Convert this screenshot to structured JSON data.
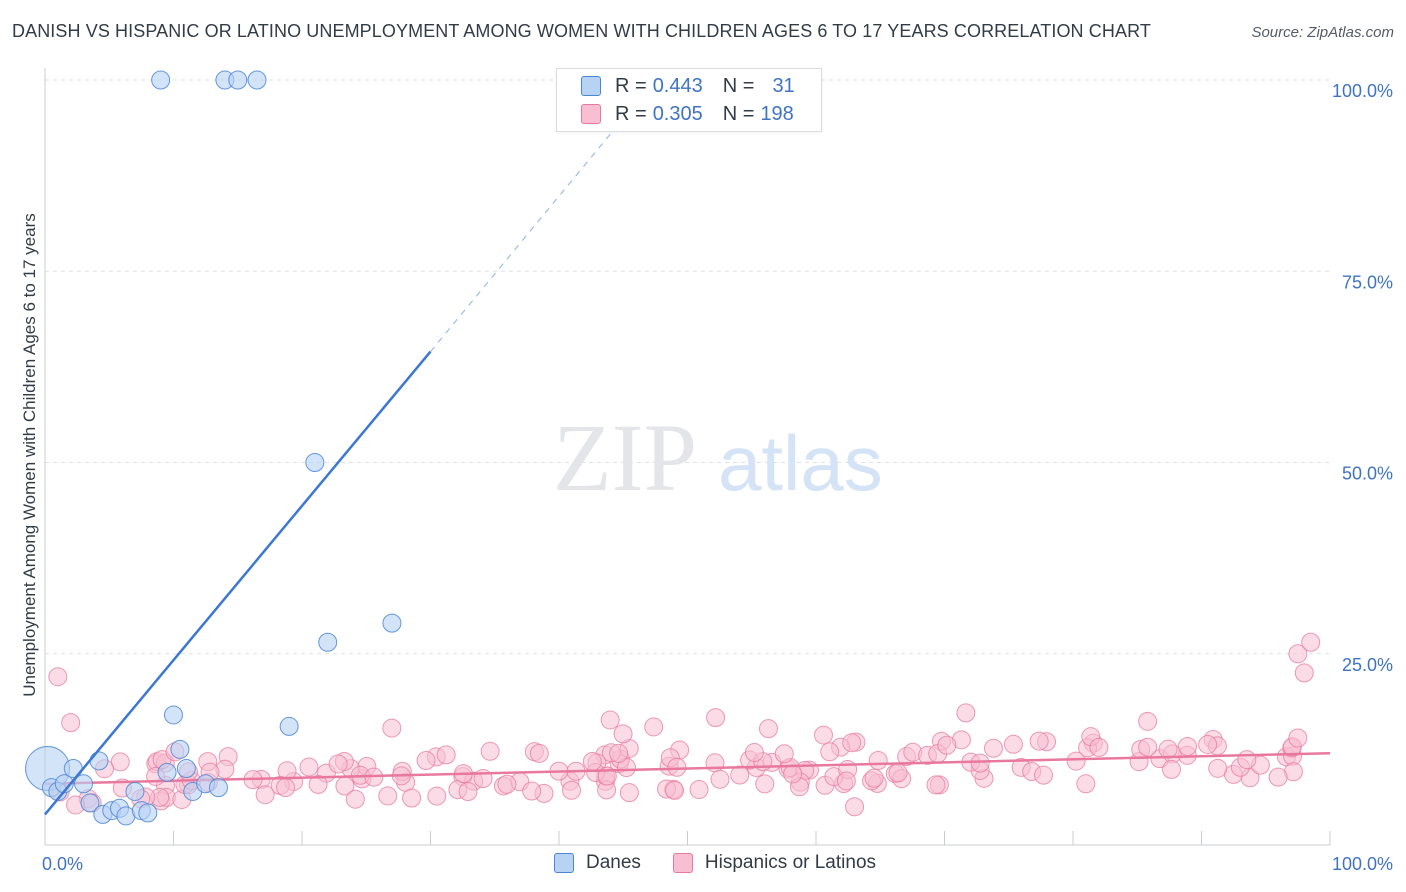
{
  "chart_data": {
    "type": "scatter",
    "title": "DANISH VS HISPANIC OR LATINO UNEMPLOYMENT AMONG WOMEN WITH CHILDREN AGES 6 TO 17 YEARS CORRELATION CHART",
    "source": "Source: ZipAtlas.com",
    "xlabel": "",
    "ylabel": "Unemployment Among Women with Children Ages 6 to 17 years",
    "xlim": [
      0,
      100
    ],
    "ylim": [
      0,
      100
    ],
    "x_tick_labels": [
      {
        "value": 0,
        "label": "0.0%"
      },
      {
        "value": 100,
        "label": "100.0%"
      }
    ],
    "y_tick_labels": [
      {
        "value": 100,
        "label": "100.0%"
      },
      {
        "value": 75,
        "label": "75.0%"
      },
      {
        "value": 50,
        "label": "50.0%"
      },
      {
        "value": 25,
        "label": "25.0%"
      }
    ],
    "watermark": {
      "zip": "ZIP",
      "atlas": "atlas"
    },
    "legend": {
      "r_label": "R =",
      "n_label": "N =",
      "entries": [
        {
          "name": "Danes",
          "r": "0.443",
          "n": "31",
          "color": "#4a86d8",
          "fill": "#b8d2f3"
        },
        {
          "name": "Hispanics or Latinos",
          "r": "0.305",
          "n": "198",
          "color": "#e8789d",
          "fill": "#f7bfd1"
        }
      ]
    },
    "series": [
      {
        "name": "Danes",
        "color": "#4a86d8",
        "fill": "#b8d2f3",
        "trend": {
          "x": [
            0,
            30
          ],
          "y": [
            4,
            64.5
          ],
          "dash_x": [
            30,
            46
          ],
          "dash_y": [
            64.5,
            97
          ]
        },
        "points": [
          [
            0.2,
            10,
            22
          ],
          [
            0.5,
            7.5,
            9
          ],
          [
            1,
            7,
            9
          ],
          [
            1.5,
            8,
            9
          ],
          [
            2.2,
            10,
            9
          ],
          [
            3,
            8,
            9
          ],
          [
            3.5,
            5.5,
            9
          ],
          [
            4.2,
            11,
            9
          ],
          [
            4.5,
            4,
            9
          ],
          [
            5.2,
            4.5,
            9
          ],
          [
            5.8,
            4.8,
            9
          ],
          [
            6.3,
            3.8,
            9
          ],
          [
            7,
            7,
            9
          ],
          [
            7.5,
            4.5,
            9
          ],
          [
            8,
            4.2,
            9
          ],
          [
            9,
            100,
            9
          ],
          [
            9.5,
            9.5,
            9
          ],
          [
            10,
            17,
            9
          ],
          [
            10.5,
            12.5,
            9
          ],
          [
            11,
            10,
            9
          ],
          [
            11.5,
            7,
            9
          ],
          [
            12.5,
            8,
            9
          ],
          [
            13.5,
            7.5,
            9
          ],
          [
            14,
            100,
            9
          ],
          [
            15,
            100,
            9
          ],
          [
            16.5,
            100,
            9
          ],
          [
            19,
            15.5,
            9
          ],
          [
            21,
            50,
            9
          ],
          [
            22,
            26.5,
            9
          ],
          [
            27,
            29,
            9
          ]
        ]
      },
      {
        "name": "Hispanics or Latinos",
        "color": "#e8789d",
        "fill": "#f7bfd1",
        "trend": {
          "x": [
            0,
            100
          ],
          "y": [
            8.0,
            12.0
          ]
        },
        "points": []
      }
    ]
  }
}
